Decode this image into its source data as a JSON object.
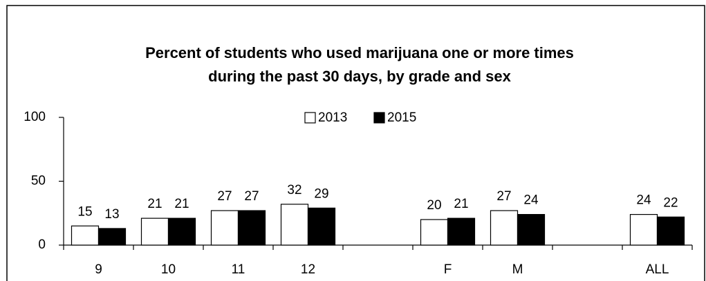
{
  "chart_data": {
    "type": "bar",
    "title": [
      "Percent of students who used marijuana one or more times",
      "during the past 30 days, by grade and sex"
    ],
    "categories": [
      "9",
      "10",
      "11",
      "12",
      null,
      "F",
      "M",
      null,
      "ALL"
    ],
    "series": [
      {
        "name": "2013",
        "color": "#ffffff",
        "values": [
          15,
          21,
          27,
          32,
          null,
          20,
          27,
          null,
          24
        ]
      },
      {
        "name": "2015",
        "color": "#000000",
        "values": [
          13,
          21,
          27,
          29,
          null,
          21,
          24,
          null,
          22
        ]
      }
    ],
    "ylim": [
      0,
      100
    ],
    "yticks": [
      0,
      50,
      100
    ],
    "grid": false,
    "legend": "top"
  }
}
